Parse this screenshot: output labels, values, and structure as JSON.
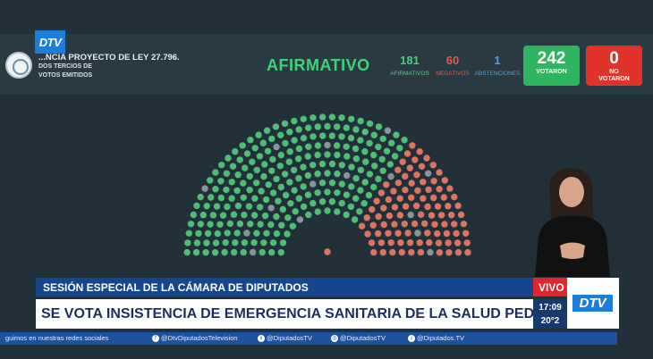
{
  "header": {
    "logo_text": "DTV",
    "law_title": "...NCIA PROYECTO DE LEY 27.796.",
    "law_sub_line1": "DOS TERCIOS DE",
    "law_sub_line2": "VOTOS EMITIDOS",
    "result": "AFIRMATIVO",
    "counts": [
      {
        "value": "181",
        "label": "AFIRMATIVOS",
        "color": "#45d07f"
      },
      {
        "value": "60",
        "label": "NEGATIVOS",
        "color": "#e0584e"
      },
      {
        "value": "1",
        "label": "ABSTENCIONES",
        "color": "#4f9fe0"
      }
    ],
    "voted": {
      "value": "242",
      "label": "VOTARON",
      "color": "#2fb55f"
    },
    "not_voted": {
      "value": "0",
      "label_line1": "NO",
      "label_line2": "VOTARON",
      "color": "#e0332a"
    }
  },
  "hemicycle": {
    "colors": {
      "yes": "#4fbd76",
      "no": "#dc7560",
      "absent": "#8a9399",
      "abst": "#5a90c0"
    },
    "vote_counts": {
      "yes": 181,
      "no": 60,
      "abstention": 1,
      "absent": 15
    }
  },
  "lower_third": {
    "session": "SESIÓN ESPECIAL DE LA CÁMARA DE DIPUTADOS",
    "headline": "SE VOTA INSISTENCIA DE EMERGENCIA SANITARIA DE LA SALUD PEDIÁTRICA",
    "live": "VIVO",
    "time": "17:09",
    "temp": "20°2",
    "brand": "DTV"
  },
  "ticker": [
    {
      "text": "guimos en nuestras redes sociales",
      "icon": ""
    },
    {
      "text": "@DtvDiputadosTelevision",
      "icon": "f"
    },
    {
      "text": "@DiputadosTV",
      "icon": "x"
    },
    {
      "text": "@DiputadosTV",
      "icon": "ig"
    },
    {
      "text": "@Diputados.TV",
      "icon": "tt"
    }
  ]
}
